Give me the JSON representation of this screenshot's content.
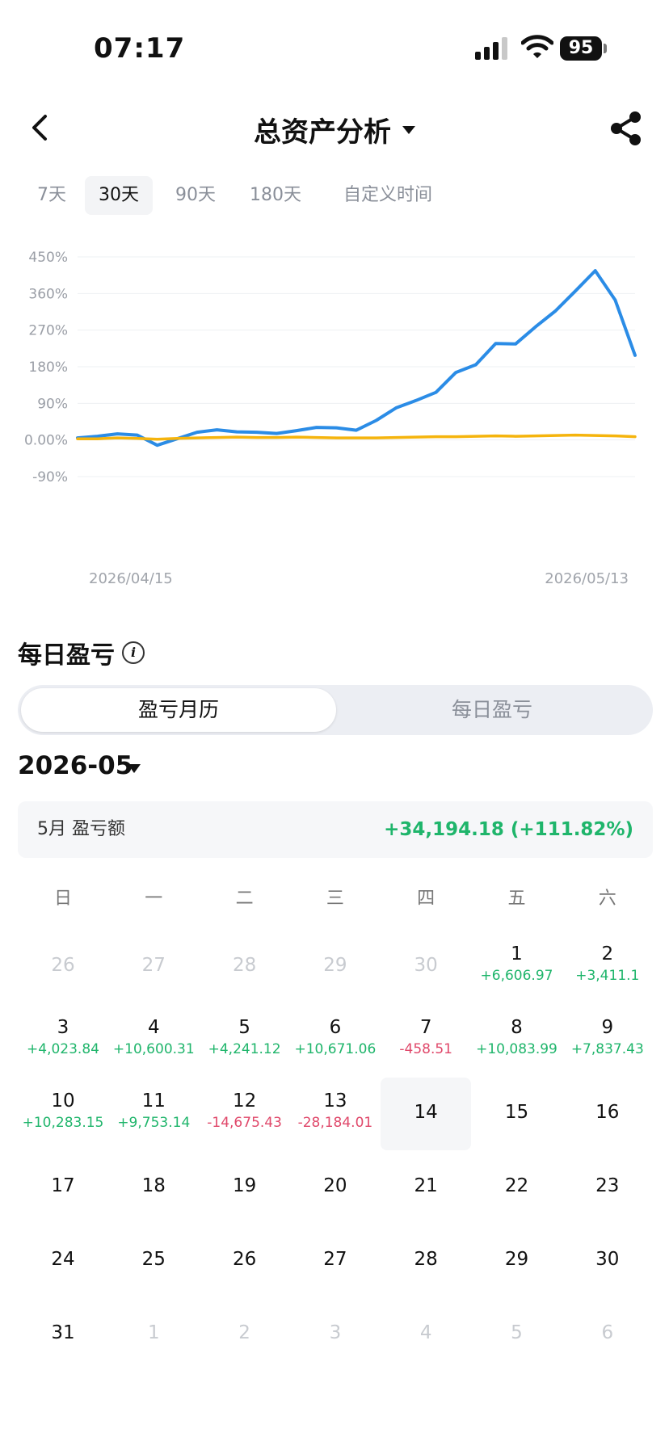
{
  "status_bar": {
    "time": "07:17",
    "battery": "95"
  },
  "header": {
    "title": "总资产分析"
  },
  "range_tabs": [
    "7天",
    "30天",
    "90天",
    "180天",
    "自定义时间"
  ],
  "active_range": "30天",
  "chart_data": {
    "type": "line",
    "x_start_label": "2026/04/15",
    "x_end_label": "2026/05/13",
    "y_ticks": [
      "450%",
      "360%",
      "270%",
      "180%",
      "90%",
      "0.00%",
      "-90%"
    ],
    "ylim": [
      -90,
      450
    ],
    "series": [
      {
        "color": "#2b8ce6",
        "values": [
          5,
          9,
          15,
          12,
          -13,
          3,
          19,
          25,
          20,
          19,
          16,
          23,
          31,
          30,
          24,
          48,
          79,
          97,
          117,
          166,
          185,
          237,
          236,
          278,
          317,
          366,
          416,
          344,
          208
        ]
      },
      {
        "color": "#f5b40d",
        "values": [
          3,
          3,
          5,
          4,
          2,
          4,
          5,
          6,
          7,
          6,
          6,
          7,
          6,
          5,
          5,
          5,
          6,
          7,
          8,
          8,
          9,
          10,
          9,
          10,
          11,
          12,
          11,
          10,
          8
        ]
      }
    ]
  },
  "daily_pnl": {
    "title": "每日盈亏",
    "tabs": [
      "盈亏月历",
      "每日盈亏"
    ],
    "month": "2026-05",
    "summary_label": "5月 盈亏额",
    "summary_value": "+34,194.18 (+111.82%)",
    "weekdays": [
      "日",
      "一",
      "二",
      "三",
      "四",
      "五",
      "六"
    ],
    "days": [
      {
        "d": "26",
        "other": true
      },
      {
        "d": "27",
        "other": true
      },
      {
        "d": "28",
        "other": true
      },
      {
        "d": "29",
        "other": true
      },
      {
        "d": "30",
        "other": true
      },
      {
        "d": "1",
        "pnl": "+6,606.97"
      },
      {
        "d": "2",
        "pnl": "+3,411.1"
      },
      {
        "d": "3",
        "pnl": "+4,023.84"
      },
      {
        "d": "4",
        "pnl": "+10,600.31"
      },
      {
        "d": "5",
        "pnl": "+4,241.12"
      },
      {
        "d": "6",
        "pnl": "+10,671.06"
      },
      {
        "d": "7",
        "pnl": "-458.51"
      },
      {
        "d": "8",
        "pnl": "+10,083.99"
      },
      {
        "d": "9",
        "pnl": "+7,837.43"
      },
      {
        "d": "10",
        "pnl": "+10,283.15"
      },
      {
        "d": "11",
        "pnl": "+9,753.14"
      },
      {
        "d": "12",
        "pnl": "-14,675.43"
      },
      {
        "d": "13",
        "pnl": "-28,184.01"
      },
      {
        "d": "14",
        "today": true
      },
      {
        "d": "15"
      },
      {
        "d": "16"
      },
      {
        "d": "17"
      },
      {
        "d": "18"
      },
      {
        "d": "19"
      },
      {
        "d": "20"
      },
      {
        "d": "21"
      },
      {
        "d": "22"
      },
      {
        "d": "23"
      },
      {
        "d": "24"
      },
      {
        "d": "25"
      },
      {
        "d": "26"
      },
      {
        "d": "27"
      },
      {
        "d": "28"
      },
      {
        "d": "29"
      },
      {
        "d": "30"
      },
      {
        "d": "31"
      },
      {
        "d": "1",
        "other": true
      },
      {
        "d": "2",
        "other": true
      },
      {
        "d": "3",
        "other": true
      },
      {
        "d": "4",
        "other": true
      },
      {
        "d": "5",
        "other": true
      },
      {
        "d": "6",
        "other": true
      }
    ]
  }
}
